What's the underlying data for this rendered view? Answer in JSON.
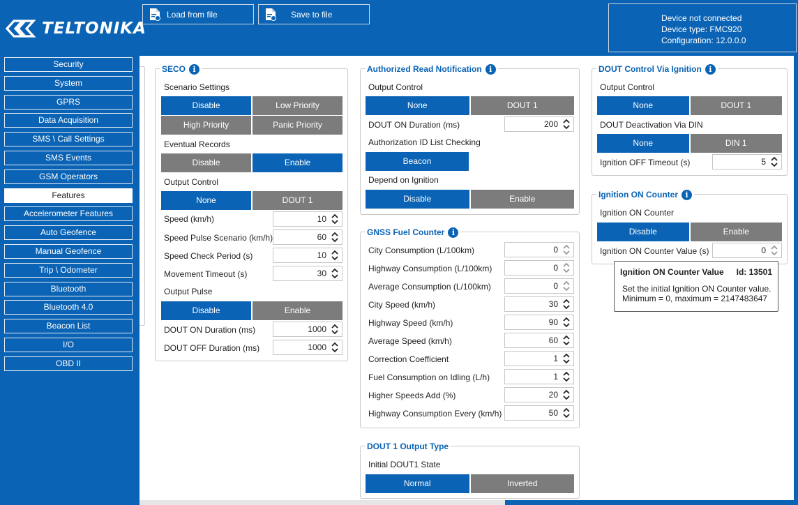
{
  "app": {
    "logo_text": "TELTONIKA"
  },
  "toolbar": {
    "load_label": "Load from file",
    "save_label": "Save to file"
  },
  "status": {
    "line1": "Device not connected",
    "line2": "Device type: FMC920",
    "line3": "Configuration: 12.0.0.0"
  },
  "sidebar": {
    "items": [
      {
        "label": "Security"
      },
      {
        "label": "System"
      },
      {
        "label": "GPRS"
      },
      {
        "label": "Data Acquisition"
      },
      {
        "label": "SMS \\ Call Settings"
      },
      {
        "label": "SMS Events"
      },
      {
        "label": "GSM Operators"
      },
      {
        "label": "Features"
      },
      {
        "label": "Accelerometer Features"
      },
      {
        "label": "Auto Geofence"
      },
      {
        "label": "Manual Geofence"
      },
      {
        "label": "Trip \\ Odometer"
      },
      {
        "label": "Bluetooth"
      },
      {
        "label": "Bluetooth 4.0"
      },
      {
        "label": "Beacon List"
      },
      {
        "label": "I/O"
      },
      {
        "label": "OBD II"
      }
    ],
    "active": "Features"
  },
  "seco": {
    "title": "SECO",
    "scenario_label": "Scenario Settings",
    "scenario": [
      "Disable",
      "Low Priority",
      "High Priority",
      "Panic Priority"
    ],
    "eventual_label": "Eventual Records",
    "eventual": [
      "Disable",
      "Enable"
    ],
    "output_label": "Output Control",
    "output": [
      "None",
      "DOUT 1"
    ],
    "speed_label": "Speed (km/h)",
    "speed_value": "10",
    "pulse_label": "Speed Pulse Scenario (km/h)",
    "pulse_value": "60",
    "check_label": "Speed Check Period (s)",
    "check_value": "10",
    "movement_label": "Movement Timeout (s)",
    "movement_value": "30",
    "outpulse_label": "Output Pulse",
    "outpulse": [
      "Disable",
      "Enable"
    ],
    "don_label": "DOUT ON Duration (ms)",
    "don_value": "1000",
    "doff_label": "DOUT OFF Duration (ms)",
    "doff_value": "1000"
  },
  "arn": {
    "title": "Authorized Read Notification",
    "output_label": "Output Control",
    "output": [
      "None",
      "DOUT 1"
    ],
    "don_label": "DOUT ON Duration (ms)",
    "don_value": "200",
    "auth_label": "Authorization ID List Checking",
    "auth_button": "Beacon",
    "ign_label": "Depend on Ignition",
    "ign": [
      "Disable",
      "Enable"
    ]
  },
  "fuel": {
    "title": "GNSS Fuel Counter",
    "rows": [
      {
        "label": "City Consumption (L/100km)",
        "value": "0"
      },
      {
        "label": "Highway Consumption (L/100km)",
        "value": "0"
      },
      {
        "label": "Average Consumption (L/100km)",
        "value": "0"
      },
      {
        "label": "City Speed (km/h)",
        "value": "30"
      },
      {
        "label": "Highway Speed (km/h)",
        "value": "90"
      },
      {
        "label": "Average Speed (km/h)",
        "value": "60"
      },
      {
        "label": "Correction Coefficient",
        "value": "1"
      },
      {
        "label": "Fuel Consumption on Idling (L/h)",
        "value": "1"
      },
      {
        "label": "Higher Speeds Add (%)",
        "value": "20"
      },
      {
        "label": "Highway Consumption Every (km/h)",
        "value": "50"
      }
    ]
  },
  "dout1": {
    "title": "DOUT 1 Output Type",
    "state_label": "Initial DOUT1 State",
    "state": [
      "Normal",
      "Inverted"
    ]
  },
  "dci": {
    "title": "DOUT Control Via Ignition",
    "output_label": "Output Control",
    "output": [
      "None",
      "DOUT 1"
    ],
    "deact_label": "DOUT Deactivation Via DIN",
    "deact": [
      "None",
      "DIN 1"
    ],
    "timeout_label": "Ignition OFF Timeout (s)",
    "timeout_value": "5"
  },
  "ioc": {
    "title": "Ignition ON Counter",
    "counter_label": "Ignition ON Counter",
    "counter": [
      "Disable",
      "Enable"
    ],
    "value_label": "Ignition ON Counter Value (s)",
    "value": "0"
  },
  "tooltip": {
    "title": "Ignition ON Counter Value",
    "id": "Id: 13501",
    "line1": "Set the initial Ignition ON Counter value.",
    "line2": "Minimum = 0, maximum = 2147483647"
  },
  "colors": {
    "accent": "#0a63b4",
    "inactive": "#7c7c7c"
  }
}
